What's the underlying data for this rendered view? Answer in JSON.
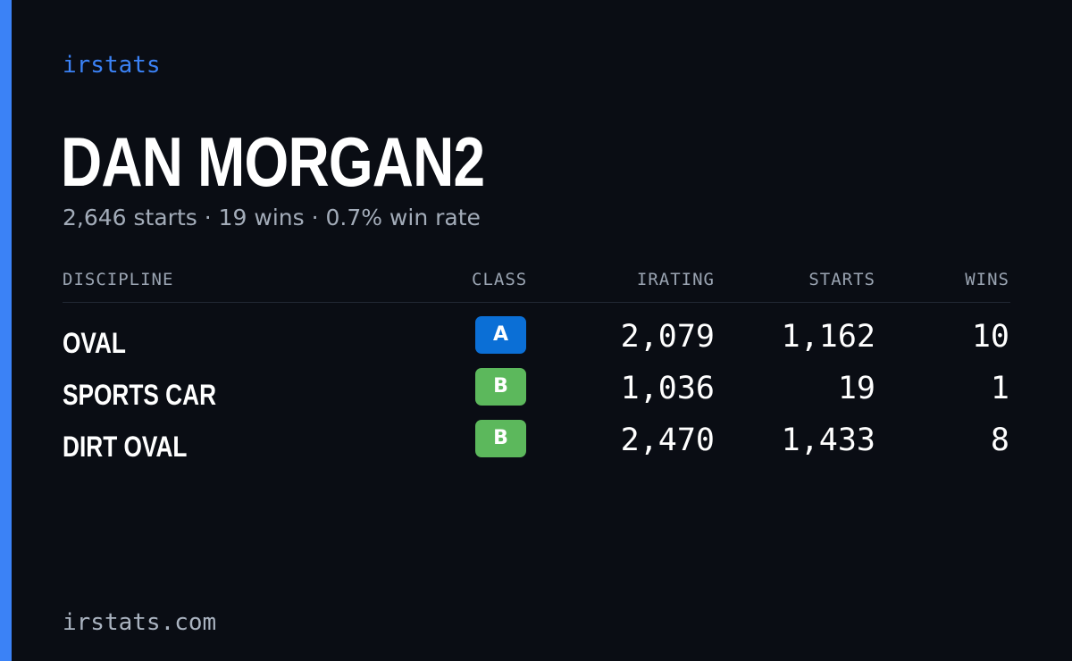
{
  "brand": {
    "name": "irstats",
    "footer_url": "irstats.com",
    "accent_color": "#3b82f6"
  },
  "driver": {
    "name": "DAN MORGAN2",
    "summary": "2,646 starts · 19 wins · 0.7% win rate"
  },
  "table": {
    "headers": {
      "discipline": "DISCIPLINE",
      "class": "CLASS",
      "irating": "IRATING",
      "starts": "STARTS",
      "wins": "WINS"
    },
    "rows": [
      {
        "discipline": "OVAL",
        "class": "A",
        "class_color": "#0b6fd6",
        "irating": "2,079",
        "starts": "1,162",
        "wins": "10"
      },
      {
        "discipline": "SPORTS CAR",
        "class": "B",
        "class_color": "#5cb85c",
        "irating": "1,036",
        "starts": "19",
        "wins": "1"
      },
      {
        "discipline": "DIRT OVAL",
        "class": "B",
        "class_color": "#5cb85c",
        "irating": "2,470",
        "starts": "1,433",
        "wins": "8"
      }
    ]
  }
}
